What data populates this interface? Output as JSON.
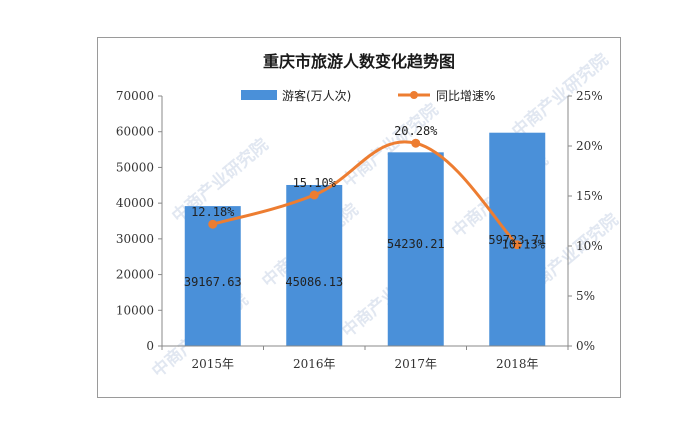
{
  "chart_data": {
    "type": "bar+line",
    "title": "重庆市旅游人数变化趋势图",
    "categories": [
      "2015年",
      "2016年",
      "2017年",
      "2018年"
    ],
    "series": [
      {
        "name": "游客(万人次)",
        "type": "bar",
        "axis": "left",
        "color": "#4a90d9",
        "values": [
          39167.63,
          45086.13,
          54230.21,
          59723.71
        ],
        "labels": [
          "39167.63",
          "45086.13",
          "54230.21",
          "59723.71"
        ]
      },
      {
        "name": "同比增速%",
        "type": "line",
        "axis": "right",
        "color": "#ed7d31",
        "values": [
          12.18,
          15.1,
          20.28,
          10.13
        ],
        "labels": [
          "12.18%",
          "15.10%",
          "20.28%",
          "10.13%"
        ]
      }
    ],
    "y_left": {
      "min": 0,
      "max": 70000,
      "ticks": [
        "0",
        "10000",
        "20000",
        "30000",
        "40000",
        "50000",
        "60000",
        "70000"
      ]
    },
    "y_right": {
      "min": 0,
      "max": 25,
      "ticks": [
        "0%",
        "5%",
        "10%",
        "15%",
        "20%",
        "25%"
      ]
    },
    "grid": false,
    "legend_position": "top-center"
  },
  "watermark": {
    "text": "中商产业研究院",
    "color": "#c9d4e6"
  }
}
